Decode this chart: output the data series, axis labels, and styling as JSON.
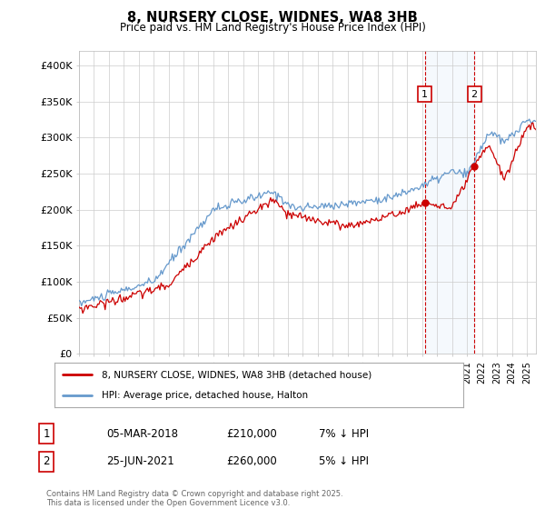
{
  "title": "8, NURSERY CLOSE, WIDNES, WA8 3HB",
  "subtitle": "Price paid vs. HM Land Registry's House Price Index (HPI)",
  "ylabel_ticks": [
    "£0",
    "£50K",
    "£100K",
    "£150K",
    "£200K",
    "£250K",
    "£300K",
    "£350K",
    "£400K"
  ],
  "ytick_values": [
    0,
    50000,
    100000,
    150000,
    200000,
    250000,
    300000,
    350000,
    400000
  ],
  "ylim": [
    0,
    420000
  ],
  "xlim_start": 1995.0,
  "xlim_end": 2025.6,
  "transaction1": {
    "date": 2018.17,
    "price": 210000,
    "label": "1",
    "text": "05-MAR-2018",
    "amount": "£210,000",
    "pct": "7% ↓ HPI"
  },
  "transaction2": {
    "date": 2021.48,
    "price": 260000,
    "label": "2",
    "text": "25-JUN-2021",
    "amount": "£260,000",
    "pct": "5% ↓ HPI"
  },
  "legend_label1": "8, NURSERY CLOSE, WIDNES, WA8 3HB (detached house)",
  "legend_label2": "HPI: Average price, detached house, Halton",
  "footer": "Contains HM Land Registry data © Crown copyright and database right 2025.\nThis data is licensed under the Open Government Licence v3.0.",
  "line_color_red": "#cc0000",
  "line_color_blue": "#6699cc",
  "vline_color": "#cc0000",
  "background_color": "#ffffff",
  "grid_color": "#cccccc",
  "shade_color": "#cce0f5"
}
